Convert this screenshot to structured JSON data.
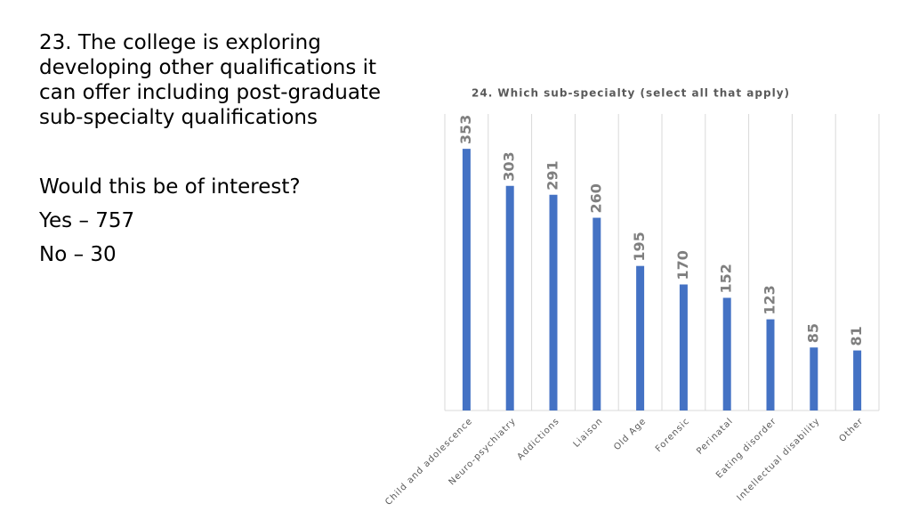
{
  "slide": {
    "question": "23. The college is exploring developing other qualifications it can offer including post-graduate sub-specialty qualifications",
    "prompt": "Would this be of interest?",
    "answers": [
      "Yes – 757",
      "No – 30"
    ]
  },
  "chart_data": {
    "type": "bar",
    "title": "24. Which sub-specialty (select all that apply)",
    "categories": [
      "Child and adolescence",
      "Neuro-psychiatry",
      "Addictions",
      "Liaison",
      "Old Age",
      "Forensic",
      "Perinatal",
      "Eating disorder",
      "Intellectual disability",
      "Other"
    ],
    "values": [
      353,
      303,
      291,
      260,
      195,
      170,
      152,
      123,
      85,
      81
    ],
    "color": "#4472c4",
    "ylim": [
      0,
      400
    ],
    "grid": true
  }
}
